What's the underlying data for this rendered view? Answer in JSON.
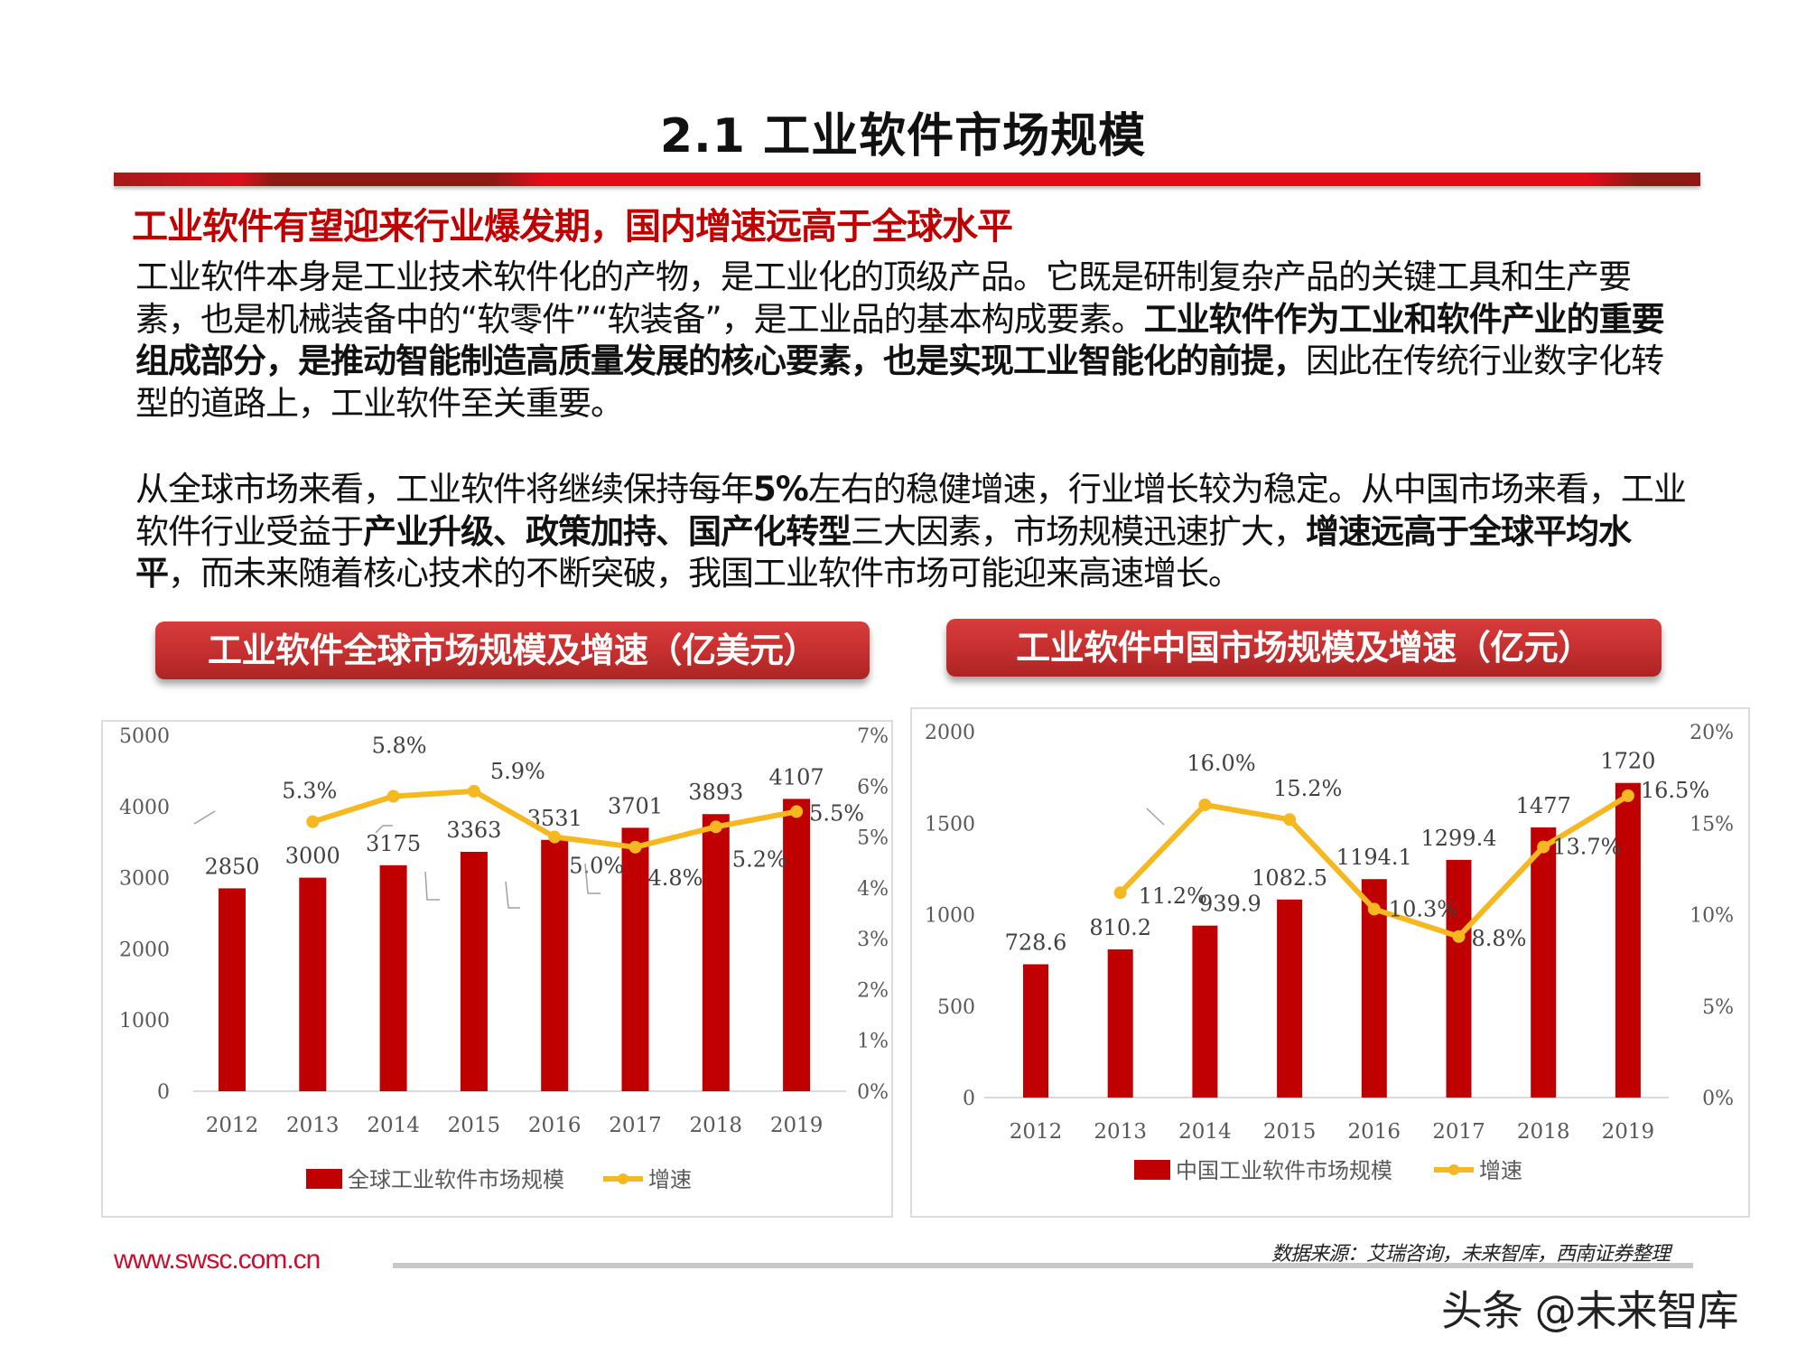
{
  "page": {
    "title": "2.1 工业软件市场规模",
    "headline": "工业软件有望迎来行业爆发期，国内增速远高于全球水平",
    "paragraph1": [
      {
        "text": "工业软件本身是工业技术软件化的产物，是工业化的顶级产品。它既是研制复杂产品的关键工具和生产要素，也是机械装备中的“软零件”“软装备”，是工业品的基本构成要素。",
        "bold": false
      },
      {
        "text": "工业软件作为工业和软件产业的重要组成部分，是推动智能制造高质量发展的核心要素，也是实现工业智能化的前提，",
        "bold": true
      },
      {
        "text": "因此在传统行业数字化转型的道路上，工业软件至关重要。",
        "bold": false
      }
    ],
    "paragraph2": [
      {
        "text": "从全球市场来看，工业软件将继续保持每年",
        "bold": false
      },
      {
        "text": "5%",
        "bold": true
      },
      {
        "text": "左右的稳健增速，行业增长较为稳定。从中国市场来看，工业软件行业受益于",
        "bold": false
      },
      {
        "text": "产业升级、政策加持、国产化转型",
        "bold": true
      },
      {
        "text": "三大因素，市场规模迅速扩大，",
        "bold": false
      },
      {
        "text": "增速远高于全球平均水平",
        "bold": true
      },
      {
        "text": "，而未来随着核心技术的不断突破，我国工业软件市场可能迎来高速增长。",
        "bold": false
      }
    ],
    "source_note": "数据来源：艾瑞咨询，未来智库，西南证券整理",
    "footer_url": "www.swsc.com.cn",
    "watermark": "头条 @未来智库"
  },
  "colors": {
    "accent_red": "#c00000",
    "bar_red": "#c00000",
    "line_yellow": "#f5b820",
    "axis_text": "#595959",
    "label_text": "#404040"
  },
  "chart_data": [
    {
      "id": "global",
      "type": "bar+line",
      "title": "工业软件全球市场规模及增速（亿美元）",
      "categories": [
        "2012",
        "2013",
        "2014",
        "2015",
        "2016",
        "2017",
        "2018",
        "2019"
      ],
      "series": [
        {
          "name": "全球工业软件市场规模",
          "type": "bar",
          "axis": "left",
          "values": [
            2850,
            3000,
            3175,
            3363,
            3531,
            3701,
            3893,
            4107
          ],
          "labels": [
            "2850",
            "3000",
            "3175",
            "3363",
            "3531",
            "3701",
            "3893",
            "4107"
          ]
        },
        {
          "name": "增速",
          "type": "line",
          "axis": "right",
          "values": [
            null,
            5.3,
            5.8,
            5.9,
            5.0,
            4.8,
            5.2,
            5.5
          ],
          "labels": [
            "",
            "5.3%",
            "5.8%",
            "5.9%",
            "5.0%",
            "4.8%",
            "5.2%",
            "5.5%"
          ]
        }
      ],
      "left_axis": {
        "min": 0,
        "max": 5000,
        "ticks": [
          "0",
          "1000",
          "2000",
          "3000",
          "4000",
          "5000"
        ]
      },
      "right_axis": {
        "min": 0,
        "max": 7,
        "ticks": [
          "0%",
          "1%",
          "2%",
          "3%",
          "4%",
          "5%",
          "6%",
          "7%"
        ]
      },
      "xlabel": "",
      "ylabel": "",
      "grid": false,
      "legend_position": "bottom"
    },
    {
      "id": "china",
      "type": "bar+line",
      "title": "工业软件中国市场规模及增速（亿元）",
      "categories": [
        "2012",
        "2013",
        "2014",
        "2015",
        "2016",
        "2017",
        "2018",
        "2019"
      ],
      "series": [
        {
          "name": "中国工业软件市场规模",
          "type": "bar",
          "axis": "left",
          "values": [
            728.6,
            810.2,
            939.9,
            1082.5,
            1194.1,
            1299.4,
            1477,
            1720
          ],
          "labels": [
            "728.6",
            "810.2",
            "939.9",
            "1082.5",
            "1194.1",
            "1299.4",
            "1477",
            "1720"
          ]
        },
        {
          "name": "增速",
          "type": "line",
          "axis": "right",
          "values": [
            null,
            11.2,
            16.0,
            15.2,
            10.3,
            8.8,
            13.7,
            16.5
          ],
          "labels": [
            "",
            "11.2%",
            "16.0%",
            "15.2%",
            "10.3%",
            "8.8%",
            "13.7%",
            "16.5%"
          ]
        }
      ],
      "left_axis": {
        "min": 0,
        "max": 2000,
        "ticks": [
          "0",
          "500",
          "1000",
          "1500",
          "2000"
        ]
      },
      "right_axis": {
        "min": 0,
        "max": 20,
        "ticks": [
          "0%",
          "5%",
          "10%",
          "15%",
          "20%"
        ]
      },
      "xlabel": "",
      "ylabel": "",
      "grid": false,
      "legend_position": "bottom"
    }
  ]
}
